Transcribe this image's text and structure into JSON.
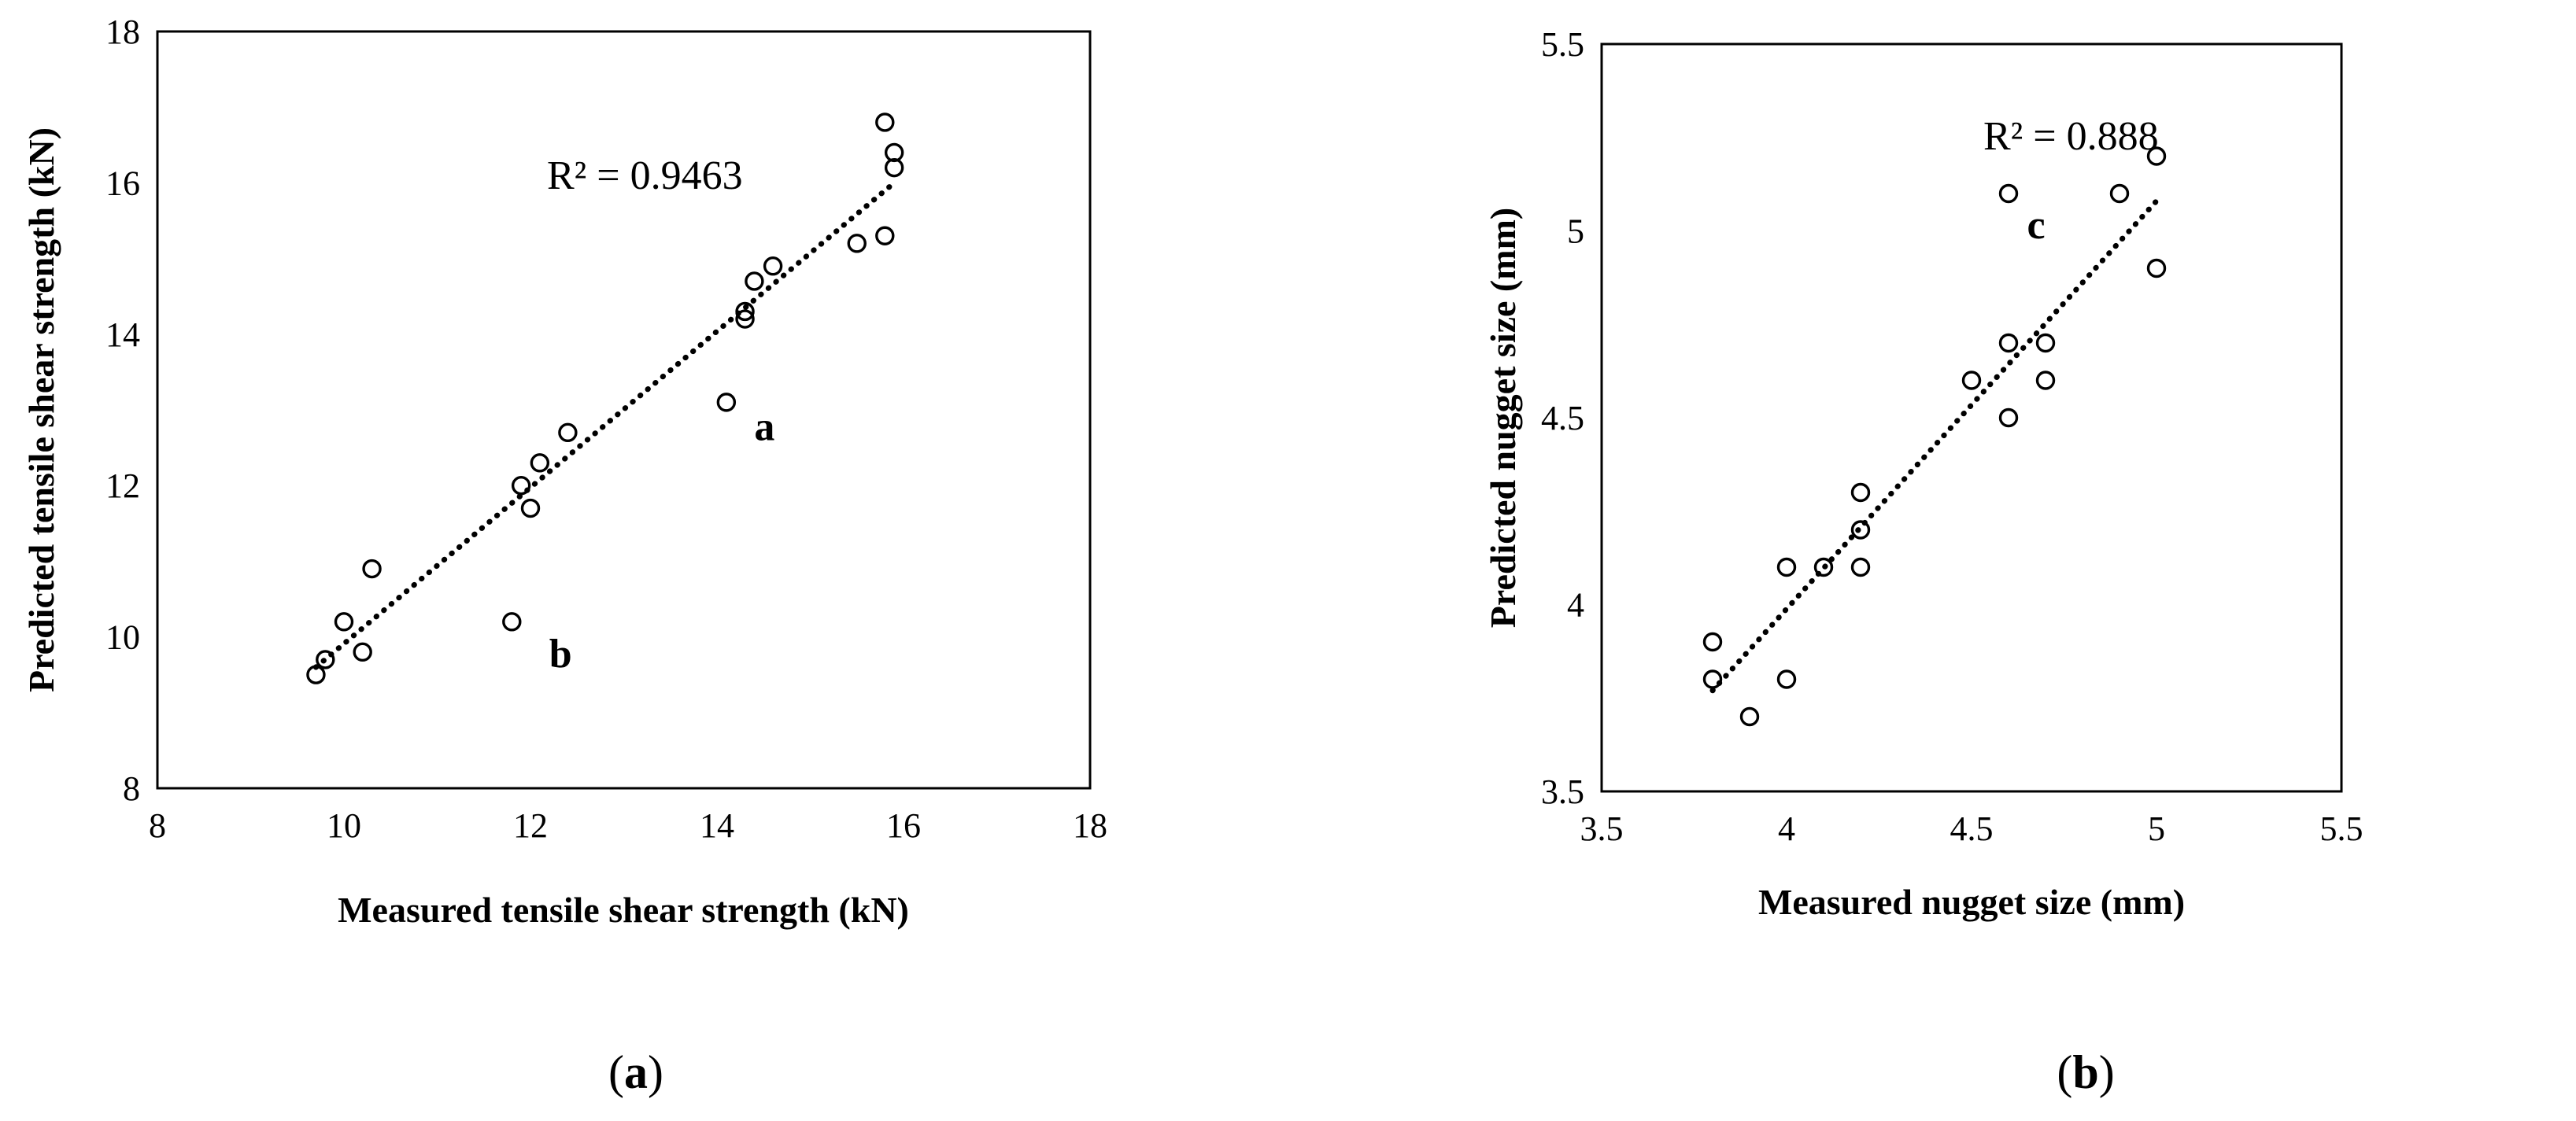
{
  "chart_data": [
    {
      "type": "scatter",
      "panel": "(a)",
      "xlabel": "Measured  tensile shear strength (kN)",
      "ylabel": "Predicted tensile shear strength (kN)",
      "xlim": [
        8,
        18
      ],
      "ylim": [
        8,
        18
      ],
      "xticks": [
        "8",
        "10",
        "12",
        "14",
        "16",
        "18"
      ],
      "yticks": [
        "8",
        "10",
        "12",
        "14",
        "16",
        "18"
      ],
      "grid": false,
      "r_squared_label": "R² = 0.9463",
      "trendline": {
        "type": "linear",
        "style": "dotted",
        "x": [
          9.7,
          15.9
        ],
        "y": [
          9.6,
          16.0
        ]
      },
      "points": [
        {
          "x": 9.7,
          "y": 9.5
        },
        {
          "x": 9.8,
          "y": 9.7
        },
        {
          "x": 10.0,
          "y": 10.2
        },
        {
          "x": 10.2,
          "y": 9.8
        },
        {
          "x": 10.3,
          "y": 10.9
        },
        {
          "x": 11.8,
          "y": 10.2
        },
        {
          "x": 11.9,
          "y": 12.0
        },
        {
          "x": 12.0,
          "y": 11.7
        },
        {
          "x": 12.1,
          "y": 12.3
        },
        {
          "x": 12.4,
          "y": 12.7
        },
        {
          "x": 14.1,
          "y": 13.1
        },
        {
          "x": 14.3,
          "y": 14.3
        },
        {
          "x": 14.3,
          "y": 14.2
        },
        {
          "x": 14.4,
          "y": 14.7
        },
        {
          "x": 14.6,
          "y": 14.9
        },
        {
          "x": 15.5,
          "y": 15.2
        },
        {
          "x": 15.8,
          "y": 15.3
        },
        {
          "x": 15.8,
          "y": 16.8
        },
        {
          "x": 15.9,
          "y": 16.4
        },
        {
          "x": 15.9,
          "y": 16.2
        }
      ],
      "annotations": [
        {
          "text": "a",
          "x": 14.4,
          "y": 12.6
        },
        {
          "text": "b",
          "x": 12.2,
          "y": 9.6
        }
      ]
    },
    {
      "type": "scatter",
      "panel": "(b)",
      "xlabel": "Measured  nugget size (mm)",
      "ylabel": "Predicted  nugget size (mm)",
      "xlim": [
        3.5,
        5.5
      ],
      "ylim": [
        3.5,
        5.5
      ],
      "xticks": [
        "3.5",
        "4",
        "4.5",
        "5",
        "5.5"
      ],
      "yticks": [
        "3.5",
        "4",
        "4.5",
        "5",
        "5.5"
      ],
      "grid": false,
      "r_squared_label": "R² = 0.888",
      "trendline": {
        "type": "linear",
        "style": "dotted",
        "x": [
          3.8,
          5.0
        ],
        "y": [
          3.77,
          5.08
        ]
      },
      "points": [
        {
          "x": 3.8,
          "y": 3.9
        },
        {
          "x": 3.8,
          "y": 3.8
        },
        {
          "x": 3.9,
          "y": 3.7
        },
        {
          "x": 4.0,
          "y": 4.1
        },
        {
          "x": 4.0,
          "y": 3.8
        },
        {
          "x": 4.1,
          "y": 4.1
        },
        {
          "x": 4.2,
          "y": 4.3
        },
        {
          "x": 4.2,
          "y": 4.2
        },
        {
          "x": 4.2,
          "y": 4.1
        },
        {
          "x": 4.5,
          "y": 4.6
        },
        {
          "x": 4.6,
          "y": 5.1
        },
        {
          "x": 4.6,
          "y": 4.7
        },
        {
          "x": 4.6,
          "y": 4.5
        },
        {
          "x": 4.7,
          "y": 4.7
        },
        {
          "x": 4.7,
          "y": 4.6
        },
        {
          "x": 4.9,
          "y": 5.1
        },
        {
          "x": 5.0,
          "y": 5.2
        },
        {
          "x": 5.0,
          "y": 4.9
        }
      ],
      "annotations": [
        {
          "text": "c",
          "x": 4.65,
          "y": 4.98
        }
      ]
    }
  ],
  "captions": {
    "a_open": "(",
    "a_letter": "a",
    "a_close": ")",
    "b_open": "(",
    "b_letter": "b",
    "b_close": ")"
  }
}
